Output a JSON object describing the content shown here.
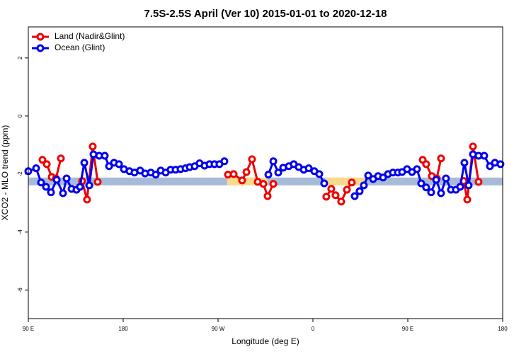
{
  "chart_data": {
    "type": "line",
    "title": "7.5S-2.5S April (Ver 10)   2015-01-01 to 2020-12-18",
    "x_label": "Longitude (deg E)",
    "y_label": "XCO2 - MLO trend (ppm)",
    "xlim": [
      90,
      540
    ],
    "ylim": [
      -6.98,
      3.07
    ],
    "xticks": [
      {
        "value": 90,
        "label": "90 E"
      },
      {
        "value": 180,
        "label": "180"
      },
      {
        "value": 270,
        "label": "90 W"
      },
      {
        "value": 360,
        "label": "0"
      },
      {
        "value": 450,
        "label": "90 E"
      },
      {
        "value": 540,
        "label": "180"
      }
    ],
    "yticks": [
      2,
      0,
      -2,
      -4,
      -6
    ],
    "legend": "top-left",
    "band": {
      "ylim": [
        -2.39,
        -2.12
      ],
      "segments": [
        {
          "x": [
            90,
            278.7
          ],
          "color": "#a7bbd9"
        },
        {
          "x": [
            278.7,
            317
          ],
          "color": "#fbd98a"
        },
        {
          "x": [
            317,
            372
          ],
          "color": "#a7bbd9"
        },
        {
          "x": [
            372,
            409
          ],
          "color": "#fbd98a"
        },
        {
          "x": [
            409,
            540
          ],
          "color": "#a7bbd9"
        }
      ]
    },
    "series": [
      {
        "name": "Land (Nadir&Glint)",
        "color": "#ee0000",
        "x": [
          103.4,
          107.5,
          112.2,
          116.2,
          120.9,
          130,
          141.0,
          145.7,
          151.1,
          155.8,
          200,
          279.4,
          284.8,
          292.8,
          296.9,
          302.2,
          307.6,
          313.0,
          317.0,
          322.4,
          340,
          372.7,
          377.4,
          381.5,
          386.8,
          392.2,
          396.9,
          430,
          464.1,
          467.4,
          472.8,
          477.5,
          481.5,
          490,
          503.0,
          506.4,
          511.8,
          517.1
        ],
        "values": [
          -1.51,
          -1.66,
          -2.1,
          -2.15,
          -1.46,
          null,
          -2.24,
          -2.88,
          -1.05,
          -2.27,
          null,
          -2.02,
          -2.0,
          -2.22,
          -1.93,
          -1.49,
          -2.27,
          -2.34,
          -2.76,
          -2.34,
          null,
          -2.78,
          -2.51,
          -2.73,
          -2.95,
          -2.54,
          -2.29,
          null,
          -1.51,
          -1.66,
          -2.07,
          -2.15,
          -1.46,
          null,
          -2.24,
          -2.88,
          -1.05,
          -2.27
        ]
      },
      {
        "name": "Ocean (Glint)",
        "color": "#0000ee",
        "x": [
          90,
          97.4,
          102.1,
          106.8,
          111.5,
          116.9,
          122.9,
          126.3,
          131.0,
          135.7,
          139.0,
          143.1,
          147.8,
          151.8,
          157.2,
          162.5,
          166.6,
          171.3,
          176.0,
          180.7,
          186.0,
          190.7,
          196.1,
          200.8,
          206.2,
          210.9,
          215.6,
          220.3,
          225.0,
          229.7,
          234.4,
          239.1,
          243.1,
          247.8,
          252.5,
          257.2,
          261.9,
          266.6,
          271.3,
          276.0,
          300,
          317.7,
          322.4,
          327.1,
          331.8,
          337.1,
          341.8,
          346.5,
          351.3,
          356.0,
          361.3,
          366.0,
          370.7,
          390,
          399.6,
          404.3,
          408.3,
          412.4,
          417.1,
          421.8,
          426.5,
          431.2,
          435.9,
          440.6,
          444.6,
          449.3,
          454.0,
          458.7,
          462.7,
          467.4,
          472.1,
          476.9,
          481.5,
          486.2,
          490.9,
          495.6,
          499.7,
          503.7,
          507.7,
          511.8,
          517.1,
          522.5,
          527.9,
          532.6,
          537.9
        ],
        "values": [
          -1.9,
          -1.8,
          -2.29,
          -2.44,
          -2.63,
          -2.2,
          -2.66,
          -2.15,
          -2.51,
          -2.54,
          -2.44,
          -1.61,
          -2.39,
          -1.32,
          -1.37,
          -1.37,
          -1.73,
          -1.61,
          -1.66,
          -1.83,
          -1.9,
          -1.95,
          -1.88,
          -1.98,
          -1.95,
          -2.02,
          -1.88,
          -1.95,
          -1.85,
          -1.85,
          -1.83,
          -1.8,
          -1.76,
          -1.73,
          -1.63,
          -1.71,
          -1.66,
          -1.66,
          -1.66,
          -1.56,
          null,
          -2.02,
          -1.56,
          -1.95,
          -1.78,
          -1.73,
          -1.66,
          -1.76,
          -1.85,
          -1.8,
          -1.9,
          -2.0,
          -2.32,
          null,
          -2.76,
          -2.59,
          -2.39,
          -2.05,
          -2.17,
          -2.07,
          -2.12,
          -2.0,
          -1.95,
          -1.95,
          -1.93,
          -1.83,
          -1.93,
          -1.83,
          -2.32,
          -2.46,
          -2.63,
          -2.2,
          -2.66,
          -2.15,
          -2.54,
          -2.54,
          -2.44,
          -1.61,
          -2.39,
          -1.32,
          -1.37,
          -1.37,
          -1.73,
          -1.61,
          -1.66
        ]
      }
    ]
  }
}
